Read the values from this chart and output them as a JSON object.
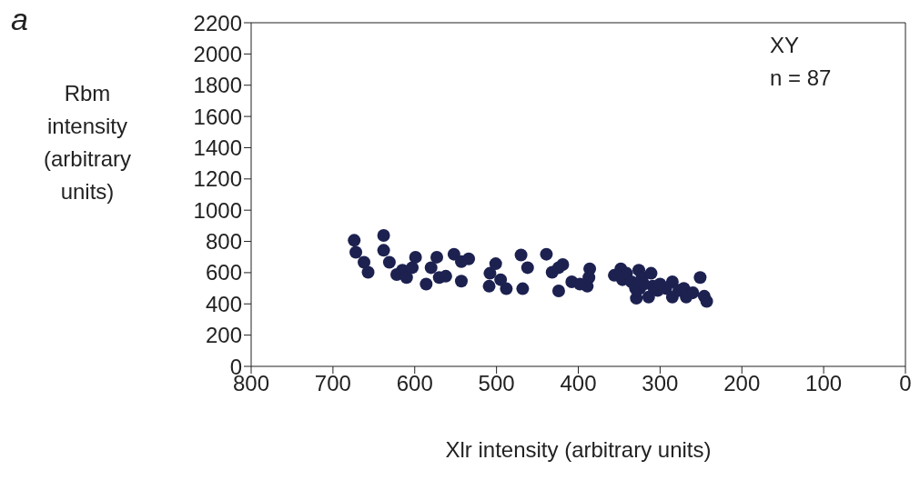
{
  "chart_data": {
    "type": "scatter",
    "xlabel": "Xlr intensity (arbitrary units)",
    "ylabel": "Rbm intensity (arbitrary units)",
    "annotations": [
      "a",
      "XY",
      "n = 87"
    ],
    "xlim": [
      800,
      0
    ],
    "xticks": [
      800,
      700,
      600,
      500,
      400,
      300,
      200,
      100,
      0
    ],
    "ylim": [
      0,
      2200
    ],
    "yticks": [
      0,
      200,
      400,
      600,
      800,
      1000,
      1200,
      1400,
      1600,
      1800,
      2000,
      2200
    ],
    "grid": false,
    "legend": false,
    "marker": "circle",
    "series": [
      {
        "color": "#1c2150",
        "x": [
          674,
          672,
          662,
          657,
          638,
          638,
          631,
          622,
          615,
          610,
          603,
          599,
          586,
          580,
          573,
          570,
          562,
          552,
          543,
          543,
          534,
          509,
          508,
          501,
          495,
          488,
          470,
          468,
          462,
          439,
          432,
          424,
          419,
          424,
          408,
          398,
          389,
          386,
          387,
          356,
          348,
          346,
          341,
          335,
          329,
          326,
          325,
          322,
          314,
          309,
          303,
          293,
          285,
          285,
          277,
          271,
          268,
          260,
          251,
          246,
          243,
          330,
          320,
          311,
          300
        ],
        "values": [
          807,
          730,
          666,
          602,
          838,
          743,
          666,
          588,
          616,
          569,
          632,
          699,
          527,
          632,
          699,
          569,
          577,
          718,
          546,
          671,
          688,
          513,
          596,
          657,
          555,
          497,
          713,
          497,
          632,
          718,
          602,
          483,
          652,
          632,
          541,
          527,
          513,
          624,
          569,
          583,
          624,
          555,
          596,
          541,
          436,
          616,
          499,
          569,
          444,
          513,
          486,
          499,
          541,
          444,
          486,
          499,
          444,
          472,
          569,
          449,
          416,
          499,
          527,
          596,
          527
        ]
      }
    ]
  }
}
